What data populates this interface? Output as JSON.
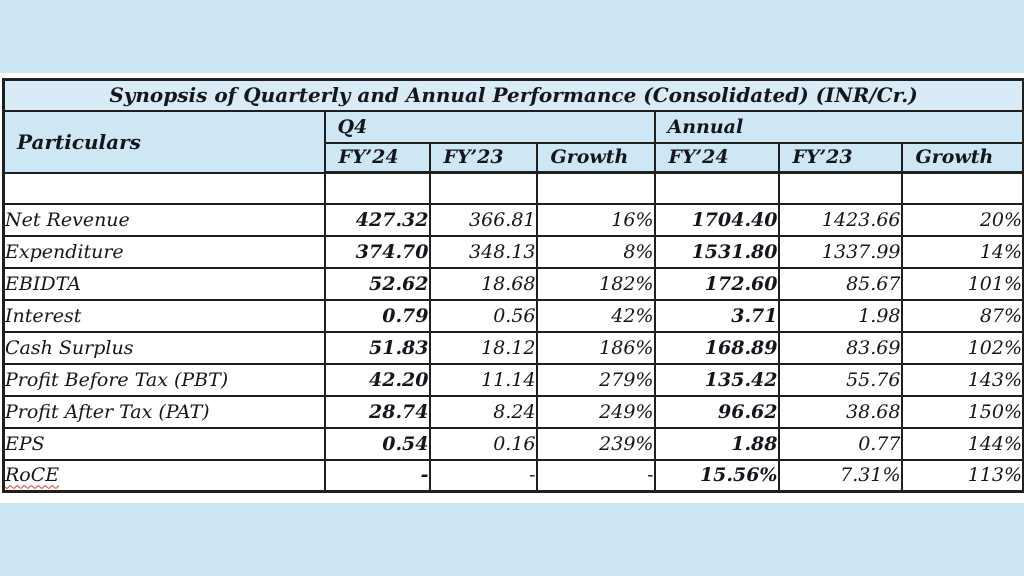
{
  "page": {
    "background_color": "#cbe5f3",
    "panel_color": "#ffffff"
  },
  "table": {
    "title": "Synopsis of Quarterly and Annual Performance (Consolidated) (INR/Cr.)",
    "title_bg": "#d9ebf7",
    "header_bg": "#cde7f5",
    "border_color": "#1f1f1f",
    "header": {
      "particulars": "Particulars",
      "groups": [
        {
          "label": "Q4",
          "cols": [
            "FY’24",
            "FY’23",
            "Growth"
          ]
        },
        {
          "label": "Annual",
          "cols": [
            "FY’24",
            "FY’23",
            "Growth"
          ]
        }
      ]
    },
    "bold_value_columns": [
      0,
      3
    ],
    "rows": [
      {
        "label": "",
        "values": [
          "",
          "",
          "",
          "",
          "",
          ""
        ],
        "spacer": true
      },
      {
        "label": "Net Revenue",
        "values": [
          "427.32",
          "366.81",
          "16%",
          "1704.40",
          "1423.66",
          "20%"
        ]
      },
      {
        "label": "Expenditure",
        "values": [
          "374.70",
          "348.13",
          "8%",
          "1531.80",
          "1337.99",
          "14%"
        ]
      },
      {
        "label": "EBIDTA",
        "values": [
          "52.62",
          "18.68",
          "182%",
          "172.60",
          "85.67",
          "101%"
        ]
      },
      {
        "label": "Interest",
        "values": [
          "0.79",
          "0.56",
          "42%",
          "3.71",
          "1.98",
          "87%"
        ]
      },
      {
        "label": "Cash Surplus",
        "values": [
          "51.83",
          "18.12",
          "186%",
          "168.89",
          "83.69",
          "102%"
        ]
      },
      {
        "label": "Profit Before Tax (PBT)",
        "values": [
          "42.20",
          "11.14",
          "279%",
          "135.42",
          "55.76",
          "143%"
        ]
      },
      {
        "label": "Profit After Tax (PAT)",
        "values": [
          "28.74",
          "8.24",
          "249%",
          "96.62",
          "38.68",
          "150%"
        ]
      },
      {
        "label": "EPS",
        "values": [
          "0.54",
          "0.16",
          "239%",
          "1.88",
          "0.77",
          "144%"
        ]
      },
      {
        "label": "RoCE",
        "values": [
          "-",
          "-",
          "-",
          "15.56%",
          "7.31%",
          "113%"
        ],
        "spellcheck_underline": true
      }
    ]
  }
}
